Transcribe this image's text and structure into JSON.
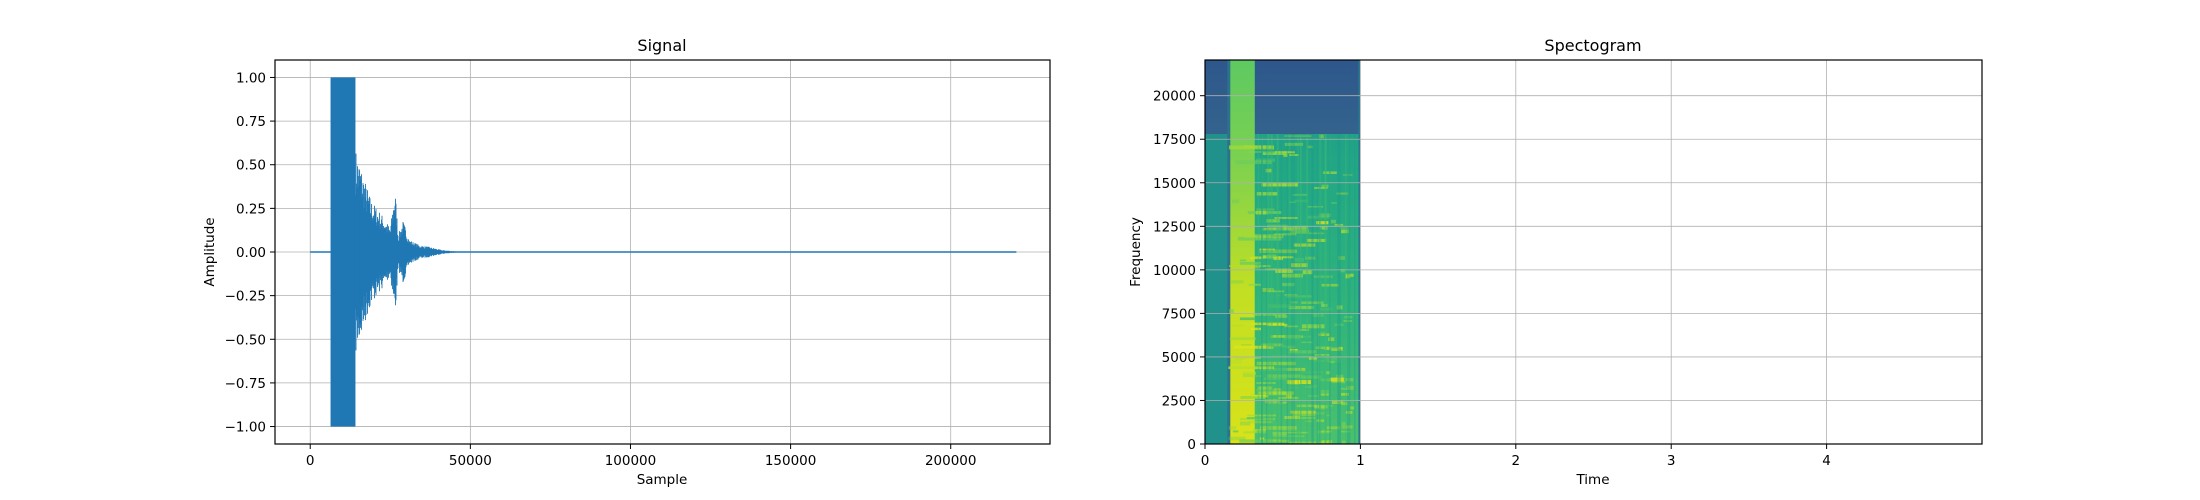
{
  "chart_data": [
    {
      "type": "line",
      "title": "Signal",
      "xlabel": "Sample",
      "ylabel": "Amplitude",
      "xlim": [
        -11000,
        231000
      ],
      "ylim": [
        -1.1,
        1.1
      ],
      "xticks": [
        0,
        50000,
        100000,
        150000,
        200000
      ],
      "yticks": [
        -1.0,
        -0.75,
        -0.5,
        -0.25,
        0.0,
        0.25,
        0.5,
        0.75,
        1.0
      ],
      "grid": true,
      "line_color": "#1f77b4",
      "series": [
        {
          "x_range": [
            0,
            220500
          ],
          "envelope": [
            [
              0,
              0.0
            ],
            [
              6500,
              0.0
            ],
            [
              6600,
              1.0
            ],
            [
              13800,
              1.0
            ],
            [
              14000,
              0.6
            ],
            [
              15500,
              0.52
            ],
            [
              17000,
              0.42
            ],
            [
              19000,
              0.3
            ],
            [
              21000,
              0.25
            ],
            [
              23000,
              0.2
            ],
            [
              25000,
              0.14
            ],
            [
              26500,
              0.37
            ],
            [
              27500,
              0.1
            ],
            [
              29000,
              0.18
            ],
            [
              31000,
              0.07
            ],
            [
              34000,
              0.04
            ],
            [
              37000,
              0.03
            ],
            [
              41000,
              0.012
            ],
            [
              45000,
              0.004
            ],
            [
              47000,
              0.0
            ],
            [
              220500,
              0.0
            ]
          ]
        }
      ]
    },
    {
      "type": "heatmap",
      "title": "Spectogram",
      "xlabel": "Time",
      "ylabel": "Frequency",
      "xlim": [
        0,
        5.0
      ],
      "ylim": [
        0,
        22050
      ],
      "xticks": [
        0,
        1,
        2,
        3,
        4
      ],
      "yticks": [
        0,
        2500,
        5000,
        7500,
        10000,
        12500,
        15000,
        17500,
        20000
      ],
      "grid": true,
      "colormap": "viridis",
      "data_extent_time": [
        0,
        1.0
      ],
      "regions": {
        "silent_start": [
          0,
          0.15
        ],
        "bright_band": [
          0.15,
          0.32
        ],
        "top_band_cutoff_freq": 17800
      },
      "colors": {
        "dark_blue": "#31578a",
        "teal": "#21918c",
        "green": "#35b779",
        "yellow": "#cde11d"
      }
    }
  ]
}
